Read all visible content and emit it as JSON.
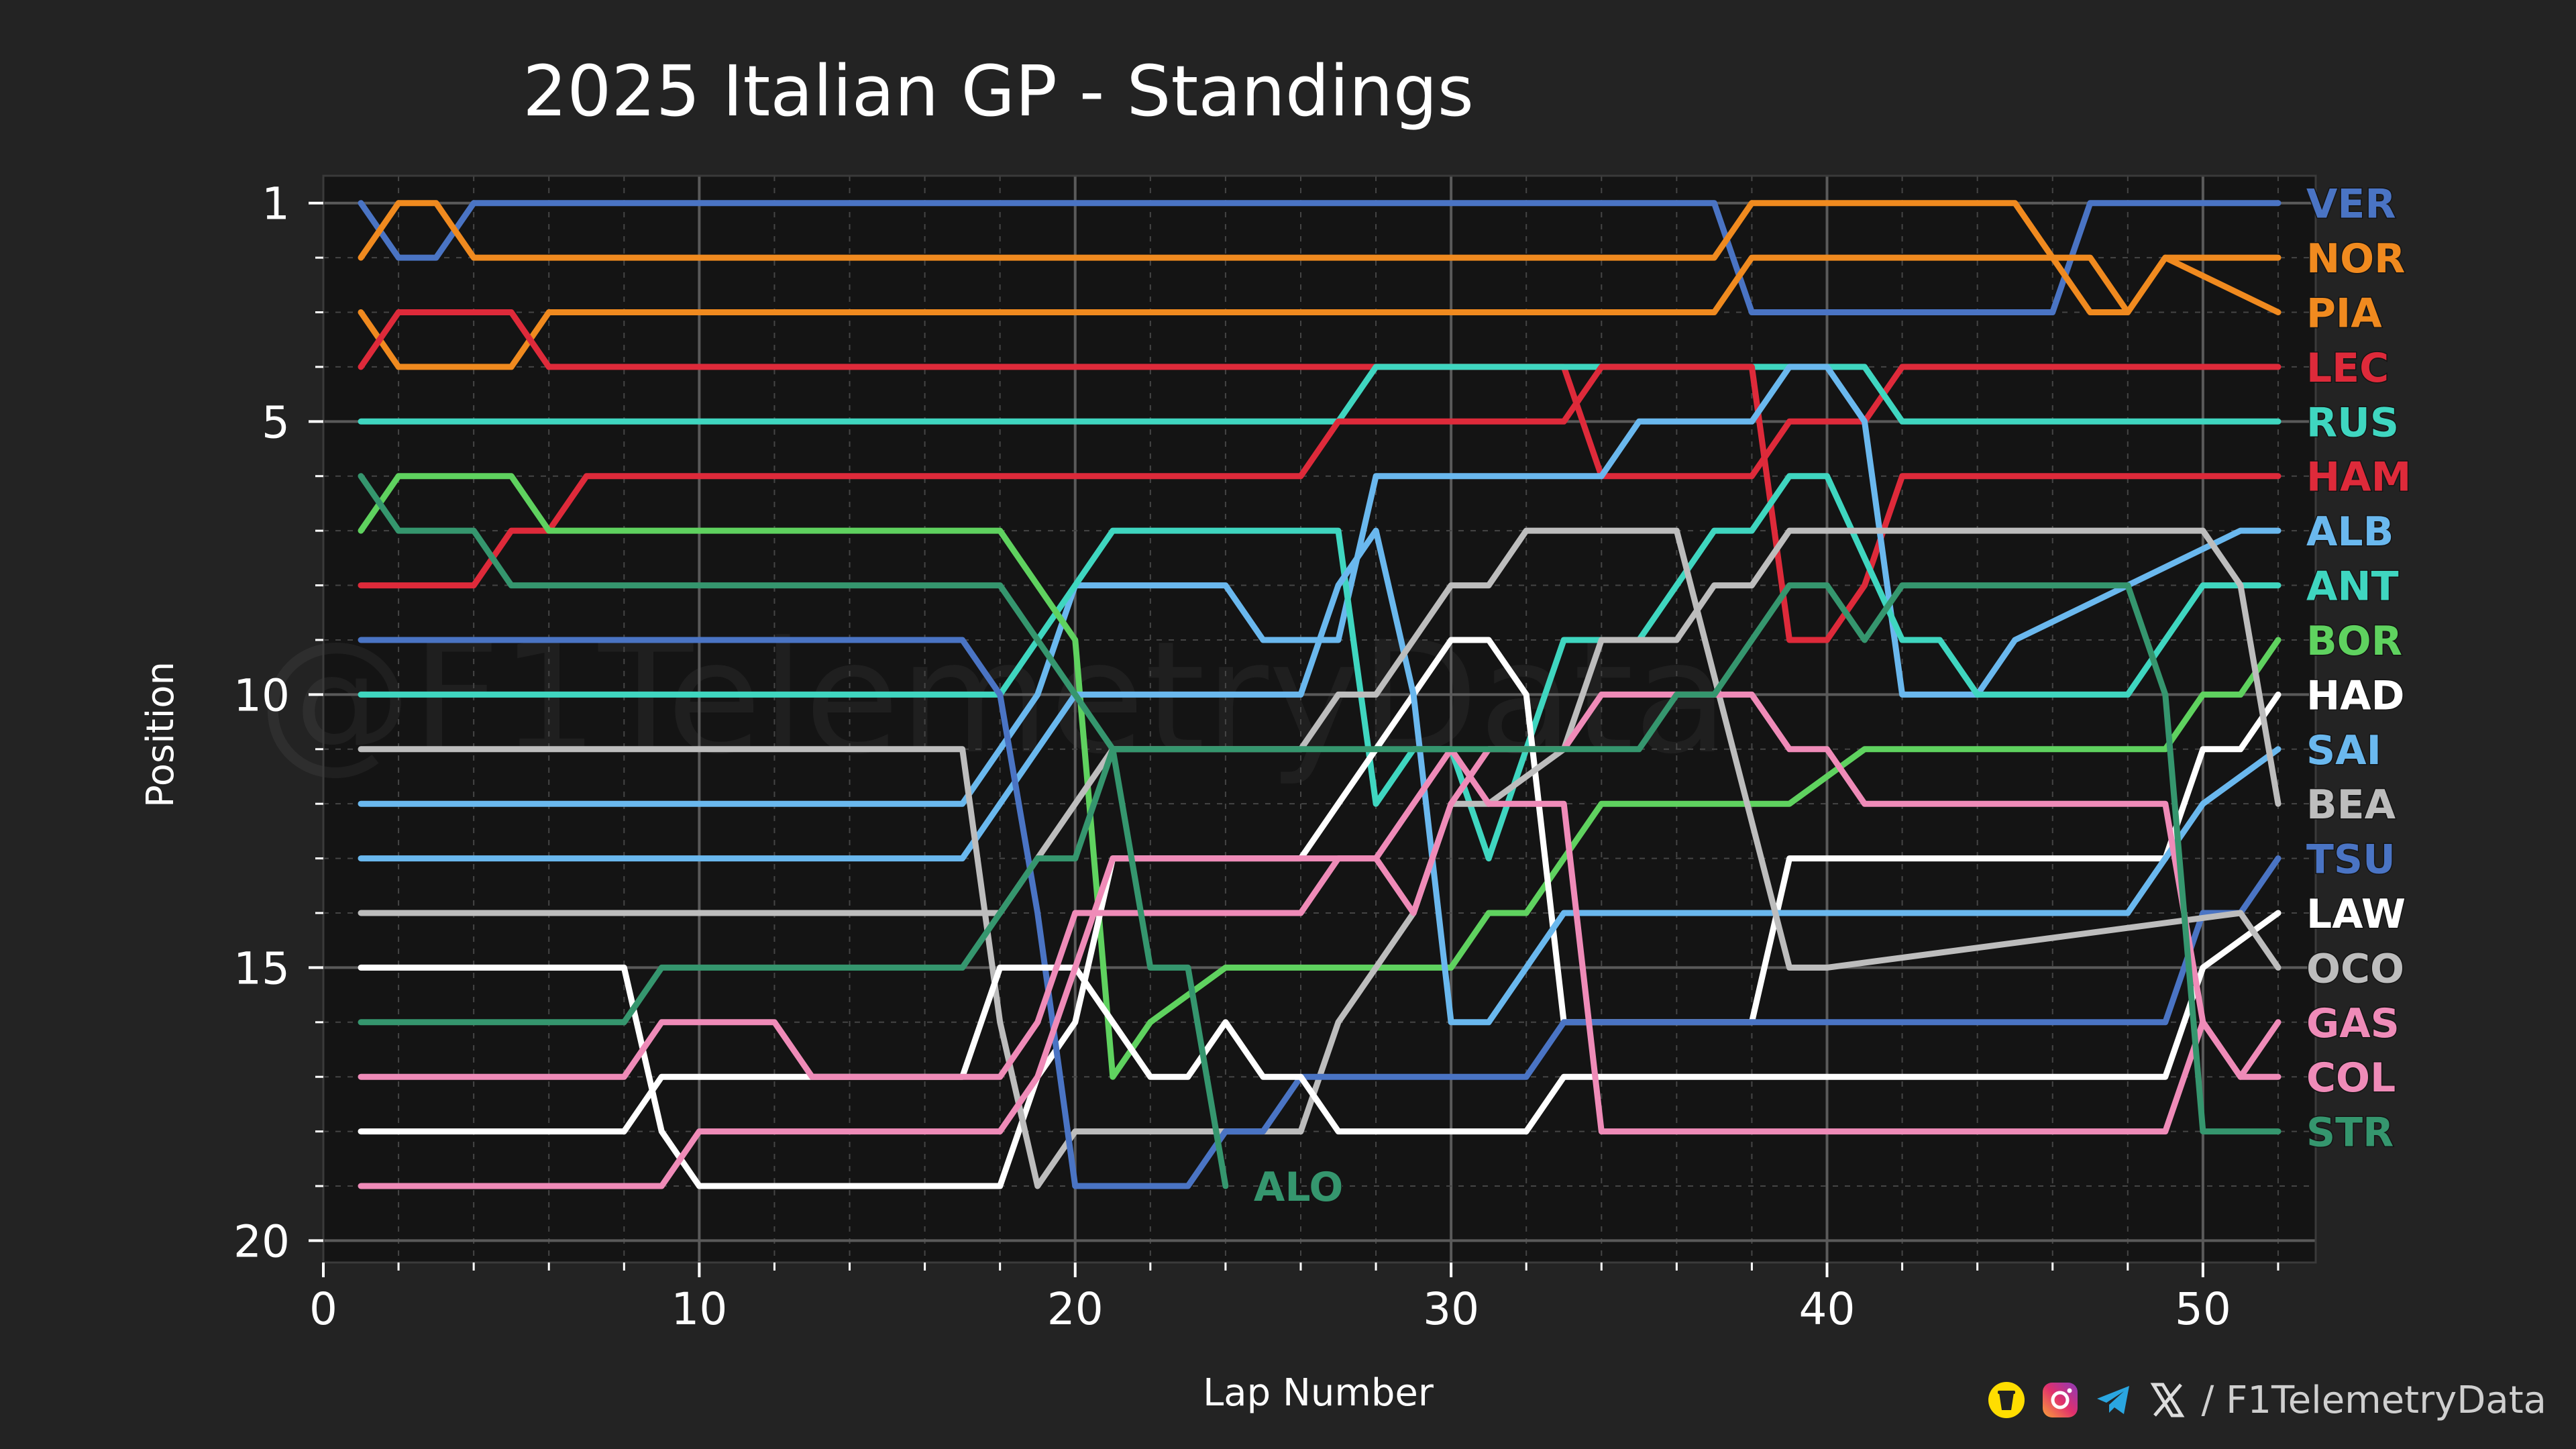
{
  "chart_data": {
    "type": "line",
    "title": "2025 Italian GP - Standings",
    "xlabel": "Lap Number",
    "ylabel": "Position",
    "xlim": [
      0,
      53
    ],
    "ylim": [
      20.4,
      0.5
    ],
    "xticks": [
      0,
      10,
      20,
      30,
      40,
      50
    ],
    "yticks": [
      1,
      5,
      10,
      15,
      20
    ],
    "grid": true,
    "watermark": "@F1TelemetryData",
    "series": [
      {
        "name": "VER",
        "color": "#4a74c4",
        "label_side": "right",
        "x": [
          1,
          2,
          3,
          4,
          37,
          38,
          46,
          47,
          52
        ],
        "y": [
          1,
          2,
          2,
          1,
          1,
          3,
          3,
          1,
          1
        ]
      },
      {
        "name": "NOR",
        "color": "#f08a1f",
        "label_side": "right",
        "x": [
          1,
          2,
          3,
          4,
          37,
          38,
          45,
          46,
          47,
          48,
          49,
          50,
          52
        ],
        "y": [
          2,
          1,
          1,
          2,
          2,
          1,
          1,
          2,
          2,
          3,
          2,
          2,
          2
        ]
      },
      {
        "name": "PIA",
        "color": "#f08a1f",
        "label_side": "right",
        "x": [
          1,
          2,
          5,
          6,
          37,
          38,
          46,
          47,
          48,
          49,
          52
        ],
        "y": [
          3,
          4,
          4,
          3,
          3,
          2,
          2,
          3,
          3,
          2,
          3
        ]
      },
      {
        "name": "LEC",
        "color": "#de2a3a",
        "label_side": "right",
        "x": [
          1,
          2,
          5,
          6,
          33,
          34,
          38,
          39,
          41,
          42,
          52
        ],
        "y": [
          4,
          3,
          3,
          4,
          4,
          6,
          6,
          5,
          5,
          4,
          4
        ]
      },
      {
        "name": "RUS",
        "color": "#3fd6c0",
        "label_side": "right",
        "x": [
          1,
          27,
          28,
          41,
          42,
          52
        ],
        "y": [
          5,
          5,
          4,
          4,
          5,
          5
        ]
      },
      {
        "name": "HAM",
        "color": "#de2a3a",
        "label_side": "right",
        "x": [
          1,
          4,
          5,
          6,
          7,
          26,
          27,
          33,
          34,
          38,
          39,
          40,
          41,
          42,
          52
        ],
        "y": [
          8,
          8,
          7,
          7,
          6,
          6,
          5,
          5,
          4,
          4,
          9,
          9,
          8,
          6,
          6
        ]
      },
      {
        "name": "ALB",
        "color": "#6ab8ee",
        "label_side": "right",
        "x": [
          1,
          17,
          18,
          19,
          20,
          24,
          25,
          26,
          27,
          28,
          34,
          35,
          37,
          38,
          39,
          40,
          41,
          42,
          43,
          44,
          45,
          51,
          52
        ],
        "y": [
          12,
          12,
          11,
          10,
          8,
          8,
          9,
          9,
          9,
          6,
          6,
          5,
          5,
          5,
          4,
          4,
          5,
          10,
          10,
          10,
          9,
          7,
          7
        ]
      },
      {
        "name": "ANT",
        "color": "#3fd6c0",
        "label_side": "right",
        "x": [
          1,
          18,
          19,
          21,
          27,
          28,
          29,
          30,
          31,
          32,
          33,
          35,
          37,
          38,
          39,
          40,
          42,
          43,
          44,
          45,
          47,
          48,
          49,
          50,
          52
        ],
        "y": [
          10,
          10,
          9,
          7,
          7,
          12,
          11,
          11,
          13,
          11,
          9,
          9,
          7,
          7,
          6,
          6,
          9,
          9,
          10,
          10,
          10,
          10,
          9,
          8,
          8
        ]
      },
      {
        "name": "BOR",
        "color": "#5fd25f",
        "label_side": "right",
        "x": [
          1,
          2,
          5,
          6,
          18,
          19,
          20,
          21,
          22,
          24,
          30,
          31,
          32,
          33,
          34,
          38,
          39,
          41,
          42,
          49,
          50,
          51,
          52
        ],
        "y": [
          7,
          6,
          6,
          7,
          7,
          8,
          9,
          17,
          16,
          15,
          15,
          14,
          14,
          13,
          12,
          12,
          12,
          11,
          11,
          11,
          10,
          10,
          9
        ]
      },
      {
        "name": "HAD",
        "color": "#ffffff",
        "label_side": "right",
        "x": [
          1,
          8,
          9,
          10,
          18,
          19,
          20,
          21,
          26,
          27,
          28,
          29,
          30,
          31,
          32,
          33,
          38,
          39,
          41,
          42,
          49,
          50,
          51,
          52
        ],
        "y": [
          15,
          15,
          18,
          19,
          19,
          17,
          16,
          13,
          13,
          12,
          11,
          10,
          9,
          9,
          10,
          16,
          16,
          13,
          13,
          13,
          13,
          11,
          11,
          10
        ]
      },
      {
        "name": "SAI",
        "color": "#6ab8ee",
        "label_side": "right",
        "x": [
          1,
          17,
          18,
          19,
          20,
          26,
          27,
          28,
          29,
          30,
          31,
          32,
          33,
          34,
          45,
          48,
          49,
          50,
          52
        ],
        "y": [
          13,
          13,
          12,
          11,
          10,
          10,
          8,
          7,
          10,
          16,
          16,
          15,
          14,
          14,
          14,
          14,
          13,
          12,
          11
        ]
      },
      {
        "name": "BEA",
        "color": "#bdbdbd",
        "label_side": "right",
        "x": [
          1,
          17,
          18,
          19,
          20,
          21,
          26,
          27,
          28,
          29,
          30,
          31,
          33,
          34,
          36,
          37,
          38,
          39,
          40,
          50,
          51,
          52
        ],
        "y": [
          11,
          11,
          16,
          19,
          18,
          18,
          18,
          16,
          15,
          14,
          12,
          12,
          11,
          9,
          9,
          8,
          8,
          7,
          7,
          7,
          8,
          12
        ]
      },
      {
        "name": "TSU",
        "color": "#4a74c4",
        "label_side": "right",
        "x": [
          1,
          17,
          18,
          19,
          20,
          23,
          24,
          25,
          26,
          27,
          32,
          33,
          49,
          50,
          51,
          52
        ],
        "y": [
          9,
          9,
          10,
          14,
          19,
          19,
          18,
          18,
          17,
          17,
          17,
          16,
          16,
          14,
          14,
          13
        ]
      },
      {
        "name": "LAW",
        "color": "#ffffff",
        "label_side": "right",
        "x": [
          1,
          8,
          9,
          10,
          17,
          18,
          20,
          21,
          22,
          23,
          24,
          25,
          26,
          27,
          32,
          33,
          49,
          50,
          52
        ],
        "y": [
          18,
          18,
          17,
          17,
          17,
          15,
          15,
          16,
          17,
          17,
          16,
          17,
          17,
          18,
          18,
          17,
          17,
          15,
          14
        ]
      },
      {
        "name": "OCO",
        "color": "#bdbdbd",
        "label_side": "right",
        "x": [
          1,
          17,
          18,
          19,
          20,
          21,
          26,
          27,
          28,
          29,
          30,
          31,
          32,
          33,
          34,
          36,
          39,
          40,
          51,
          52
        ],
        "y": [
          14,
          14,
          14,
          13,
          12,
          11,
          11,
          10,
          10,
          9,
          8,
          8,
          7,
          7,
          7,
          7,
          15,
          15,
          14,
          15
        ]
      },
      {
        "name": "GAS",
        "color": "#ef8bb8",
        "label_side": "right",
        "x": [
          1,
          8,
          9,
          11,
          12,
          13,
          17,
          18,
          19,
          20,
          21,
          26,
          27,
          28,
          29,
          30,
          31,
          32,
          33,
          34,
          38,
          39,
          40,
          41,
          42,
          49,
          50,
          51,
          52
        ],
        "y": [
          17,
          17,
          16,
          16,
          16,
          17,
          17,
          17,
          16,
          14,
          14,
          14,
          13,
          13,
          14,
          12,
          11,
          11,
          11,
          10,
          10,
          11,
          11,
          12,
          12,
          12,
          16,
          17,
          16
        ]
      },
      {
        "name": "COL",
        "color": "#ef8bb8",
        "label_side": "right",
        "x": [
          1,
          9,
          10,
          18,
          19,
          20,
          21,
          26,
          27,
          28,
          29,
          30,
          31,
          32,
          33,
          34,
          49,
          50,
          51,
          52
        ],
        "y": [
          19,
          19,
          18,
          18,
          17,
          15,
          13,
          13,
          13,
          13,
          12,
          11,
          12,
          12,
          12,
          18,
          18,
          16,
          17,
          17
        ]
      },
      {
        "name": "STR",
        "color": "#35966e",
        "label_side": "right",
        "x": [
          1,
          2,
          4,
          5,
          8,
          9,
          17,
          18,
          19,
          20,
          21,
          23,
          24,
          33,
          34,
          35,
          36,
          37,
          38,
          39,
          40,
          41,
          42,
          48,
          49,
          50,
          51,
          52
        ],
        "y": [
          6,
          7,
          7,
          8,
          8,
          8,
          8,
          8,
          9,
          10,
          11,
          11,
          11,
          11,
          11,
          11,
          10,
          10,
          9,
          8,
          8,
          9,
          8,
          8,
          10,
          18,
          18,
          18
        ]
      },
      {
        "name": "ALO",
        "color": "#35966e",
        "label_side": "end",
        "x": [
          1,
          8,
          9,
          17,
          18,
          19,
          20,
          21,
          22,
          23,
          24
        ],
        "y": [
          16,
          16,
          15,
          15,
          14,
          13,
          13,
          11,
          15,
          15,
          19
        ]
      }
    ]
  },
  "footer": {
    "handle": "/ F1TelemetryData",
    "icons": [
      "buymeacoffee-icon",
      "instagram-icon",
      "telegram-icon",
      "x-icon"
    ]
  }
}
